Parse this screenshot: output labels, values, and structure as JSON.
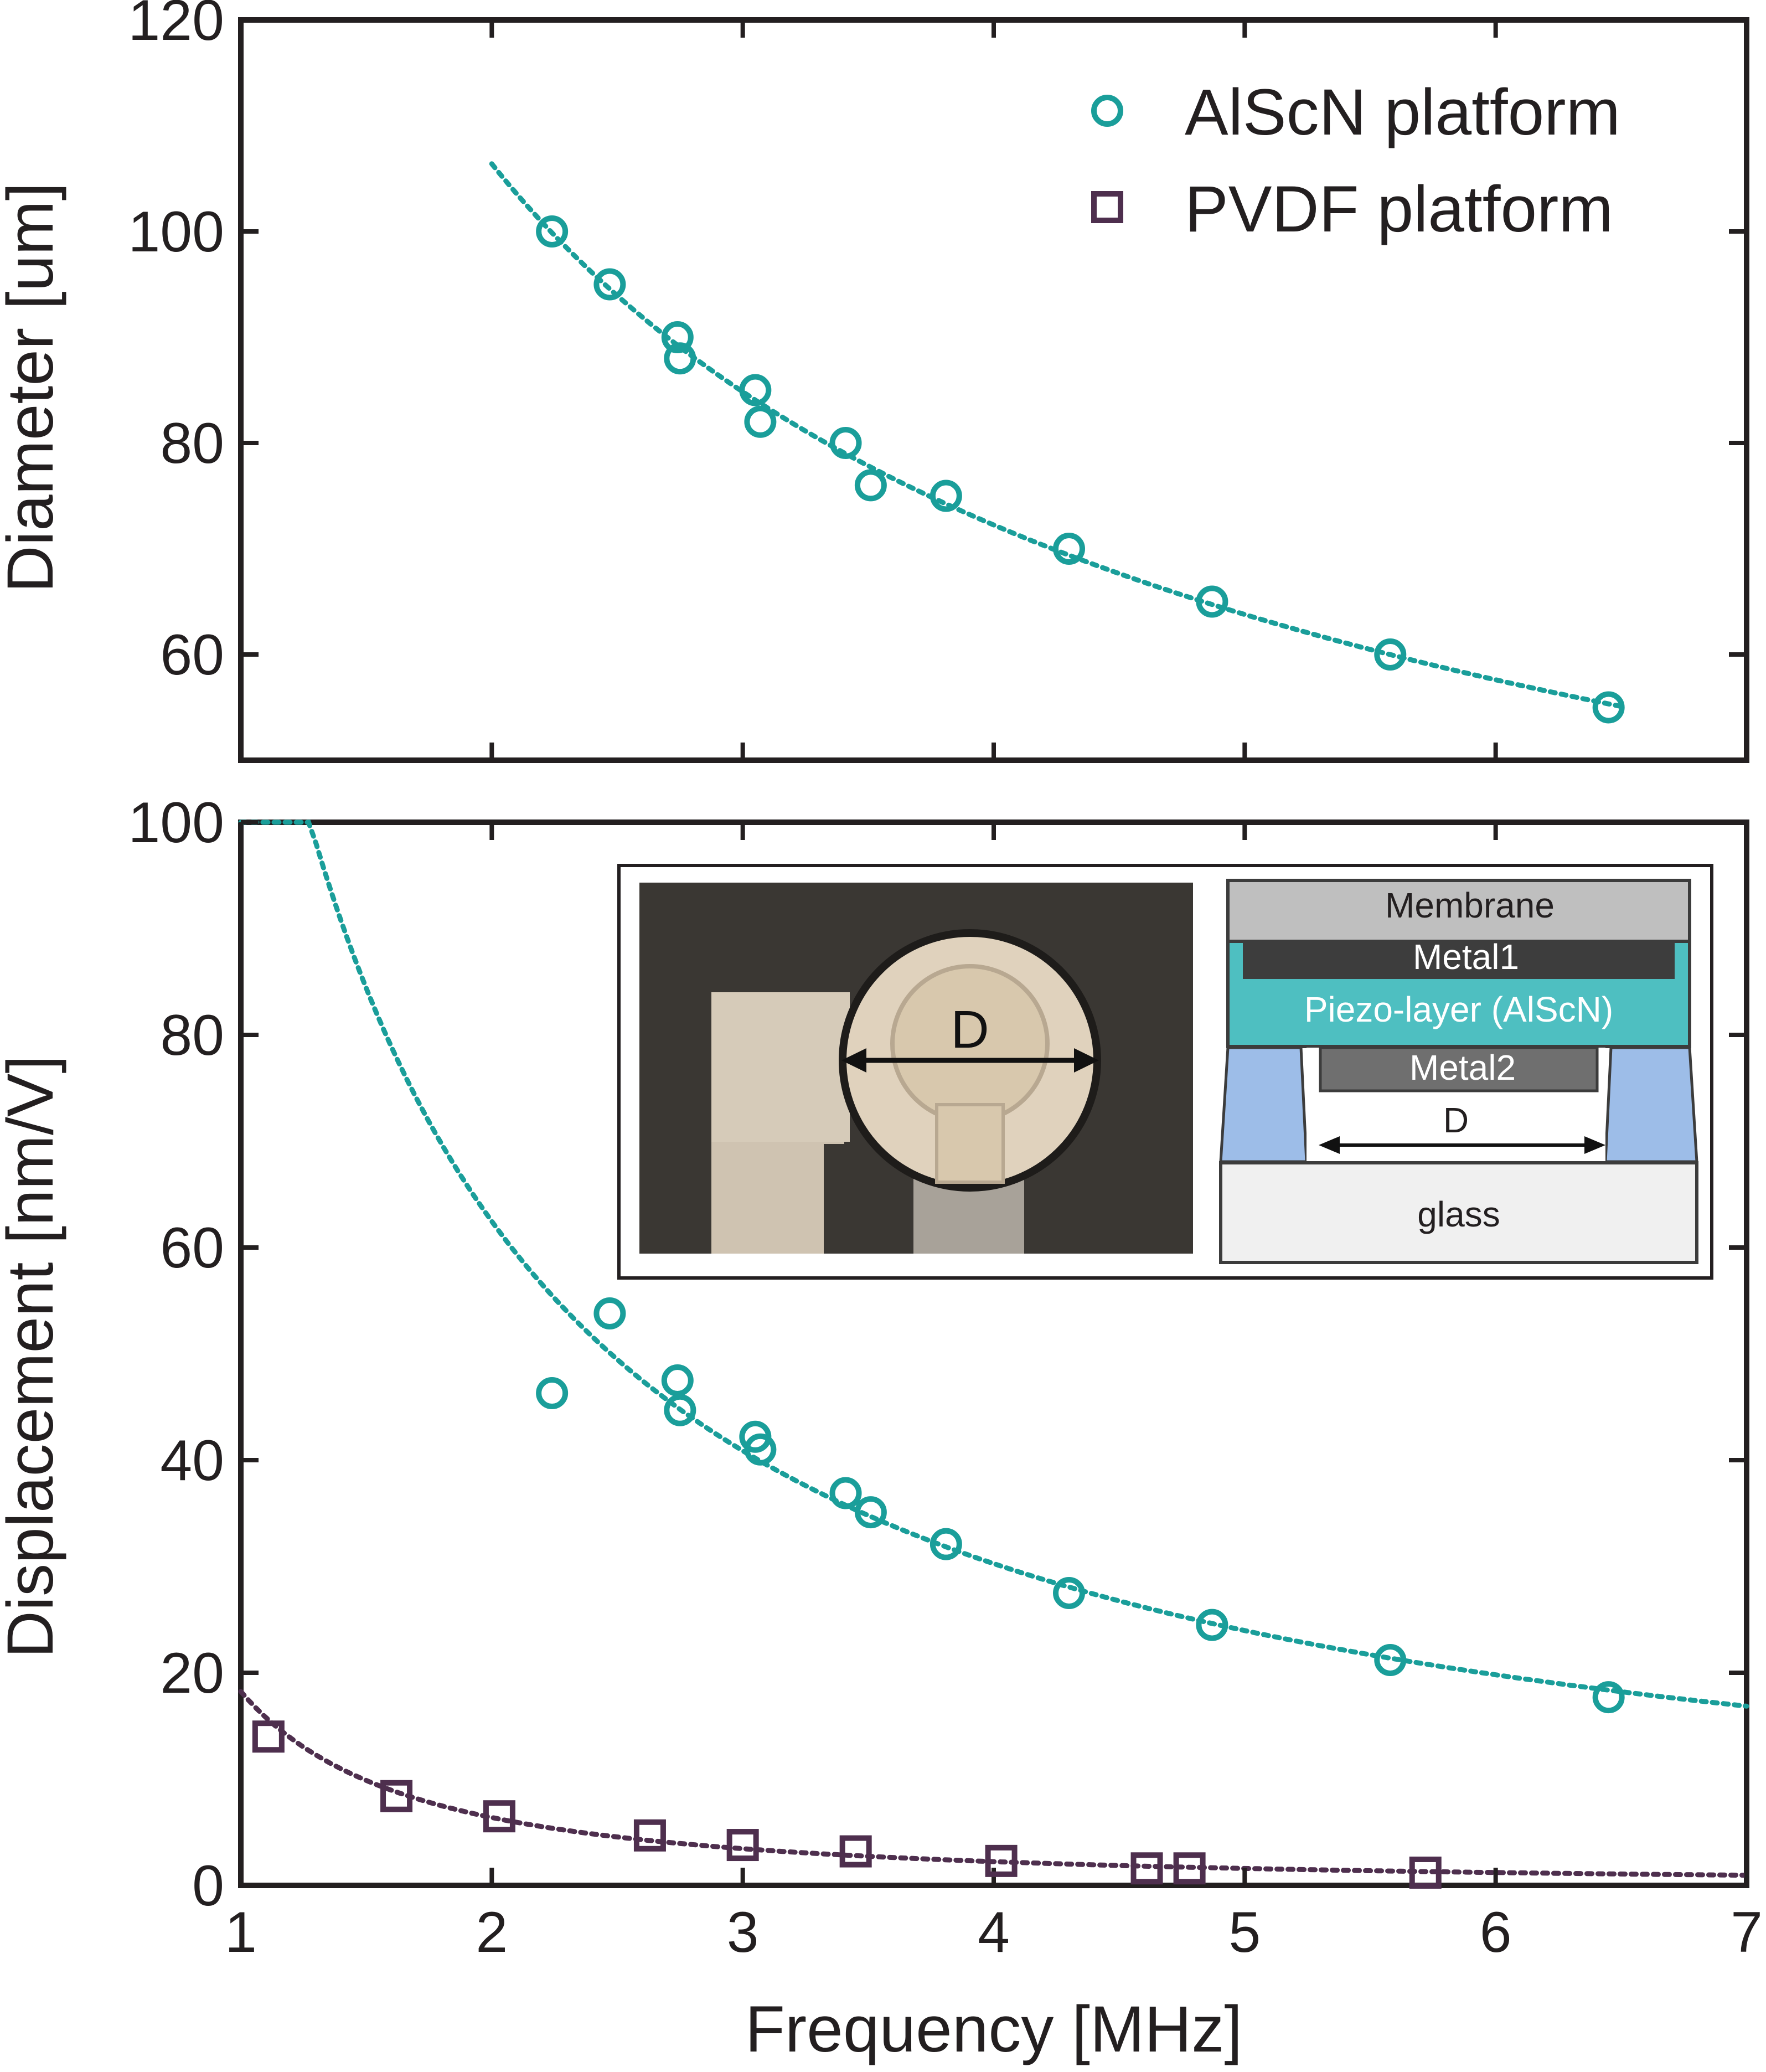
{
  "colors": {
    "alscn": "#1a9e9a",
    "pvdf": "#4e2f4e",
    "axis": "#231f20"
  },
  "chart_data": [
    {
      "type": "scatter",
      "xlim": [
        1,
        7
      ],
      "ylim": [
        50,
        120
      ],
      "x_ticks": [
        "1",
        "2",
        "3",
        "4",
        "5",
        "6",
        "7"
      ],
      "y_ticks": [
        "60",
        "80",
        "100",
        "120"
      ],
      "xlabel": "",
      "ylabel": "Diameter [um]",
      "legend_position": "top-right",
      "grid": false,
      "series": [
        {
          "name": "AlScN platform",
          "marker": "circle",
          "x": [
            2.24,
            2.47,
            2.74,
            2.75,
            3.05,
            3.07,
            3.41,
            3.51,
            3.81,
            4.3,
            4.87,
            5.58,
            6.45
          ],
          "y": [
            100,
            95,
            90,
            88,
            85,
            82,
            80,
            76,
            75,
            70,
            65,
            60,
            55
          ],
          "fit": {
            "kind": "dotted",
            "x_range": [
              2.0,
              6.5
            ]
          }
        }
      ]
    },
    {
      "type": "scatter",
      "xlim": [
        1,
        7
      ],
      "ylim": [
        0,
        100
      ],
      "x_ticks": [
        "1",
        "2",
        "3",
        "4",
        "5",
        "6",
        "7"
      ],
      "y_ticks": [
        "0",
        "20",
        "40",
        "60",
        "80",
        "100"
      ],
      "xlabel": "Frequency [MHz]",
      "ylabel": "Displacement [nm/V]",
      "grid": false,
      "series": [
        {
          "name": "AlScN platform",
          "marker": "circle",
          "x": [
            2.24,
            2.47,
            2.74,
            2.75,
            3.05,
            3.07,
            3.41,
            3.51,
            3.81,
            4.3,
            4.87,
            5.58,
            6.45
          ],
          "y": [
            46.3,
            53.8,
            47.5,
            44.7,
            42.2,
            41.0,
            36.9,
            35.1,
            32.1,
            27.5,
            24.5,
            21.2,
            17.7
          ],
          "fit": {
            "kind": "dotted",
            "x_range": [
              1.0,
              7.0
            ]
          }
        },
        {
          "name": "PVDF platform",
          "marker": "square",
          "x": [
            1.11,
            1.62,
            2.03,
            2.63,
            3.0,
            3.45,
            4.03,
            4.61,
            4.78,
            5.72
          ],
          "y": [
            14.0,
            8.4,
            6.5,
            4.7,
            3.8,
            3.2,
            2.3,
            1.6,
            1.6,
            1.2
          ],
          "fit": {
            "kind": "dotted",
            "x_range": [
              1.0,
              7.0
            ]
          }
        }
      ]
    }
  ],
  "inset": {
    "photo_label": "D",
    "layers": {
      "membrane": "Membrane",
      "metal1": "Metal1",
      "piezo": "Piezo-layer (AlScN)",
      "metal2": "Metal2",
      "gap": "D",
      "substrate": "glass"
    },
    "layer_colors": {
      "membrane": "#bfbfbf",
      "metal1": "#404040",
      "piezo": "#4ebfc1",
      "metal2": "#6f6f6f",
      "spacer": "#9dbde8",
      "glass": "#f0f0f0"
    }
  }
}
